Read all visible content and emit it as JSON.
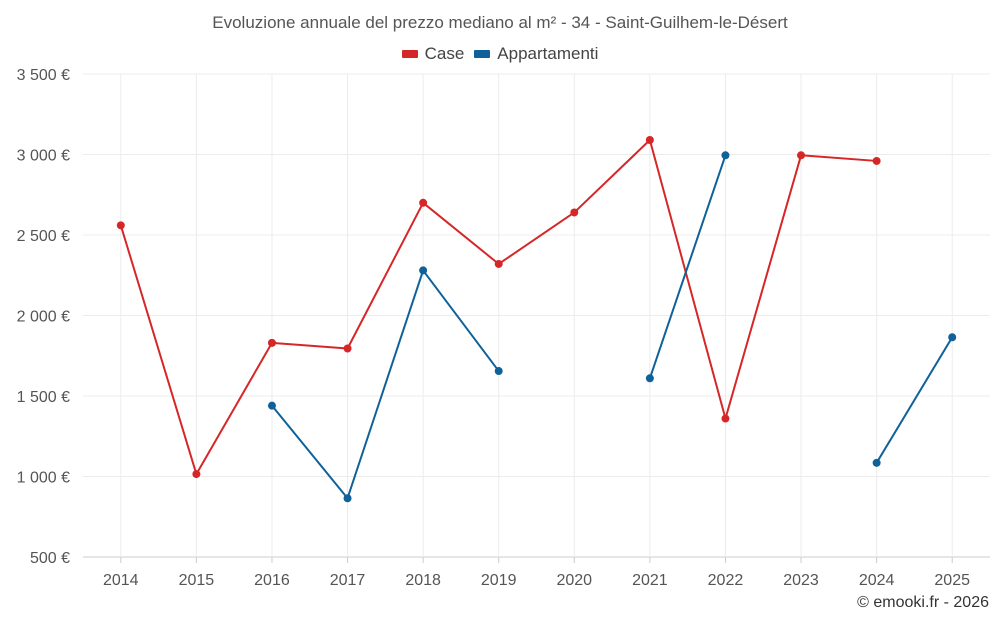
{
  "chart_data": {
    "type": "line",
    "title": "Evoluzione annuale del prezzo mediano al m² - 34 - Saint-Guilhem-le-Désert",
    "xlabel": "",
    "ylabel": "",
    "x": [
      "2014",
      "2015",
      "2016",
      "2017",
      "2018",
      "2019",
      "2020",
      "2021",
      "2022",
      "2023",
      "2024",
      "2025"
    ],
    "ylim": [
      500,
      3500
    ],
    "yticks": [
      500,
      1000,
      1500,
      2000,
      2500,
      3000,
      3500
    ],
    "ytick_labels": [
      "500 €",
      "1 000 €",
      "1 500 €",
      "2 000 €",
      "2 500 €",
      "3 000 €",
      "3 500 €"
    ],
    "grid": true,
    "legend_position": "top-center",
    "series": [
      {
        "name": "Case",
        "color": "#d62728",
        "values": [
          2560,
          1015,
          1830,
          1795,
          2700,
          2320,
          2640,
          3090,
          1360,
          2995,
          2960,
          null
        ]
      },
      {
        "name": "Appartamenti",
        "color": "#0e6199",
        "values": [
          null,
          null,
          1440,
          865,
          2280,
          1655,
          null,
          1610,
          2995,
          null,
          1085,
          1865
        ]
      }
    ]
  },
  "copyright": "© emooki.fr - 2026"
}
